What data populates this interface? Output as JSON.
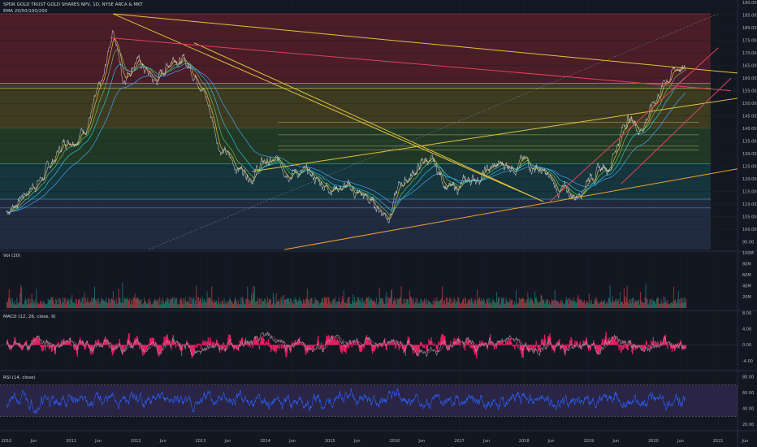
{
  "chart": {
    "title": "SPDR GOLD TRUST GOLD SHARES NPV, 1D, NYSE ARCA & MKT",
    "indicator": "EMA 20/50/100/200"
  },
  "panes": {
    "volume": {
      "label": "Vol (20)"
    },
    "macd": {
      "label": "MACD (12, 26, close, 9)"
    },
    "rsi": {
      "label": "RSI (14, close)"
    }
  },
  "colors": {
    "background": "#131722",
    "grid": "#1e222d",
    "price_line": "#d1d4dc",
    "trend_yellow": "#e2c23b",
    "trend_red": "#e0405e",
    "trend_orange": "#f0a232",
    "macd_hist": "#e91e63",
    "rsi_line": "#2962ff",
    "rsi_band": "#7e57c2"
  },
  "chart_data": [
    {
      "type": "line",
      "pane": "price",
      "y_ticks": [
        "190.00",
        "185.00",
        "180.00",
        "175.00",
        "170.00",
        "165.00",
        "160.00",
        "155.00",
        "150.00",
        "145.00",
        "140.00",
        "135.00",
        "130.00",
        "125.00",
        "120.00",
        "115.00",
        "110.00",
        "105.00",
        "100.00",
        "95.00"
      ],
      "ylim": [
        92,
        191
      ],
      "x_labels": [
        "2010",
        "Jun",
        "2011",
        "Jun",
        "2012",
        "Jun",
        "2013",
        "Jun",
        "2014",
        "Jun",
        "2015",
        "Jun",
        "2016",
        "Jun",
        "2017",
        "Jun",
        "2018",
        "Jun",
        "2019",
        "Jun",
        "2020",
        "Jun",
        "2021",
        "Jun"
      ],
      "x": [
        2010.0,
        2010.3,
        2010.6,
        2010.9,
        2011.2,
        2011.5,
        2011.65,
        2011.8,
        2012.0,
        2012.3,
        2012.6,
        2012.8,
        2013.0,
        2013.3,
        2013.5,
        2013.8,
        2014.0,
        2014.3,
        2014.6,
        2014.9,
        2015.2,
        2015.5,
        2015.9,
        2016.1,
        2016.5,
        2016.9,
        2017.2,
        2017.6,
        2017.9,
        2018.2,
        2018.5,
        2018.8,
        2019.0,
        2019.3,
        2019.6,
        2019.8,
        2020.0,
        2020.2,
        2020.4,
        2020.5
      ],
      "values": [
        107,
        115,
        122,
        135,
        140,
        158,
        181,
        160,
        168,
        158,
        170,
        165,
        160,
        133,
        126,
        122,
        127,
        125,
        122,
        118,
        117,
        113,
        106,
        118,
        128,
        115,
        120,
        125,
        127,
        125,
        116,
        113,
        122,
        125,
        145,
        140,
        150,
        160,
        165,
        162
      ]
    },
    {
      "type": "bar",
      "pane": "volume",
      "y_ticks": [
        "100M",
        "80M",
        "60M",
        "40M",
        "20M"
      ],
      "ylim": [
        0,
        100
      ]
    },
    {
      "type": "line",
      "pane": "macd",
      "y_ticks": [
        "8.00",
        "4.00",
        "0.00",
        "-4.00"
      ],
      "ylim": [
        -6,
        8
      ]
    },
    {
      "type": "line",
      "pane": "rsi",
      "y_ticks": [
        "80.00",
        "60.00",
        "40.00",
        "20.00"
      ],
      "ylim": [
        15,
        85
      ],
      "bands": [
        70,
        30
      ]
    }
  ]
}
